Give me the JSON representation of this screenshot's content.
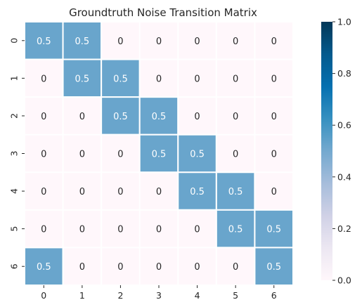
{
  "chart_data": {
    "type": "heatmap",
    "title": "Groundtruth Noise Transition Matrix",
    "xlabel": "",
    "ylabel": "",
    "x_categories": [
      "0",
      "1",
      "2",
      "3",
      "4",
      "5",
      "6"
    ],
    "y_categories": [
      "0",
      "1",
      "2",
      "3",
      "4",
      "5",
      "6"
    ],
    "values": [
      [
        0.5,
        0.5,
        0,
        0,
        0,
        0,
        0
      ],
      [
        0,
        0.5,
        0.5,
        0,
        0,
        0,
        0
      ],
      [
        0,
        0,
        0.5,
        0.5,
        0,
        0,
        0
      ],
      [
        0,
        0,
        0,
        0.5,
        0.5,
        0,
        0
      ],
      [
        0,
        0,
        0,
        0,
        0.5,
        0.5,
        0
      ],
      [
        0,
        0,
        0,
        0,
        0,
        0.5,
        0.5
      ],
      [
        0.5,
        0,
        0,
        0,
        0,
        0,
        0.5
      ]
    ],
    "cell_labels": [
      [
        "0.5",
        "0.5",
        "0",
        "0",
        "0",
        "0",
        "0"
      ],
      [
        "0",
        "0.5",
        "0.5",
        "0",
        "0",
        "0",
        "0"
      ],
      [
        "0",
        "0",
        "0.5",
        "0.5",
        "0",
        "0",
        "0"
      ],
      [
        "0",
        "0",
        "0",
        "0.5",
        "0.5",
        "0",
        "0"
      ],
      [
        "0",
        "0",
        "0",
        "0",
        "0.5",
        "0.5",
        "0"
      ],
      [
        "0",
        "0",
        "0",
        "0",
        "0",
        "0.5",
        "0.5"
      ],
      [
        "0.5",
        "0",
        "0",
        "0",
        "0",
        "0",
        "0.5"
      ]
    ],
    "colorbar": {
      "range": [
        0.0,
        1.0
      ],
      "ticks": [
        "0.0",
        "0.2",
        "0.4",
        "0.6",
        "0.8",
        "1.0"
      ],
      "colormap": "PuBu"
    },
    "colors": {
      "low": "#fff7fb",
      "mid": "#69a5cc",
      "high": "#023858",
      "gridline": "#ffffff",
      "label_light": "#ffffff",
      "label_dark": "#262626"
    },
    "grid": false,
    "legend": "right"
  }
}
